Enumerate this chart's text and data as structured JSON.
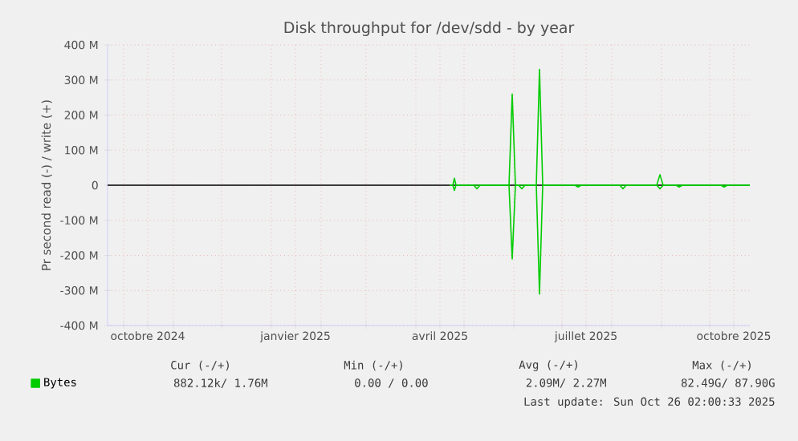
{
  "chart_data": {
    "type": "line",
    "title": "Disk throughput for /dev/sdd - by year",
    "ylabel": "Pr second read (-) / write (+)",
    "xlim": [
      "2024-09-21",
      "2025-10-26"
    ],
    "xticks": [
      {
        "value": "2024-10-01",
        "label": null
      },
      {
        "value": "2024-10-16",
        "label": "octobre 2024"
      },
      {
        "value": "2024-11-01",
        "label": null
      },
      {
        "value": "2024-12-01",
        "label": null
      },
      {
        "value": "2025-01-01",
        "label": null
      },
      {
        "value": "2025-01-16",
        "label": "janvier 2025"
      },
      {
        "value": "2025-02-01",
        "label": null
      },
      {
        "value": "2025-03-01",
        "label": null
      },
      {
        "value": "2025-04-01",
        "label": null
      },
      {
        "value": "2025-04-16",
        "label": "avril 2025"
      },
      {
        "value": "2025-05-01",
        "label": null
      },
      {
        "value": "2025-06-01",
        "label": null
      },
      {
        "value": "2025-07-01",
        "label": null
      },
      {
        "value": "2025-07-16",
        "label": "juillet 2025"
      },
      {
        "value": "2025-08-01",
        "label": null
      },
      {
        "value": "2025-09-01",
        "label": null
      },
      {
        "value": "2025-10-01",
        "label": null
      },
      {
        "value": "2025-10-16",
        "label": "octobre 2025"
      }
    ],
    "ylim": [
      -400000000,
      400000000
    ],
    "yticks": [
      {
        "value": -400000000,
        "label": "-400 M"
      },
      {
        "value": -300000000,
        "label": "-300 M"
      },
      {
        "value": -200000000,
        "label": "-200 M"
      },
      {
        "value": -100000000,
        "label": "-100 M"
      },
      {
        "value": 0,
        "label": "0"
      },
      {
        "value": 100000000,
        "label": "100 M"
      },
      {
        "value": 200000000,
        "label": "200 M"
      },
      {
        "value": 300000000,
        "label": "300 M"
      },
      {
        "value": 400000000,
        "label": "400 M"
      }
    ],
    "grid": true,
    "legend": "bottom",
    "marker": "none",
    "line_style": "solid",
    "ref_lines": [
      {
        "axis": "y",
        "value": 0,
        "color": "#000000"
      }
    ],
    "series": [
      {
        "name": "Bytes",
        "color": "#00cc00",
        "x": [
          "2025-04-22",
          "2025-04-24",
          "2025-04-25",
          "2025-04-26",
          "2025-05-29",
          "2025-05-31",
          "2025-06-02",
          "2025-06-15",
          "2025-06-17",
          "2025-06-19",
          "2025-08-29",
          "2025-08-31",
          "2025-09-02",
          "2025-10-26"
        ],
        "values": [
          0,
          0,
          20000000,
          0,
          0,
          260000000,
          0,
          0,
          330000000,
          0,
          0,
          30000000,
          0,
          0
        ]
      },
      {
        "color": "#00cc00",
        "x": [
          "2025-04-22",
          "2025-04-24",
          "2025-04-25",
          "2025-04-26",
          "2025-05-07",
          "2025-05-09",
          "2025-05-11",
          "2025-05-29",
          "2025-05-31",
          "2025-06-02",
          "2025-06-04",
          "2025-06-06",
          "2025-06-08",
          "2025-06-15",
          "2025-06-17",
          "2025-06-19",
          "2025-07-09",
          "2025-07-11",
          "2025-07-13",
          "2025-08-06",
          "2025-08-08",
          "2025-08-10",
          "2025-08-29",
          "2025-08-31",
          "2025-09-02",
          "2025-09-10",
          "2025-09-12",
          "2025-09-14",
          "2025-10-08",
          "2025-10-10",
          "2025-10-12",
          "2025-10-26"
        ],
        "values": [
          0,
          0,
          -15000000,
          0,
          0,
          -10000000,
          0,
          0,
          -210000000,
          0,
          0,
          -10000000,
          0,
          0,
          -310000000,
          0,
          0,
          -5000000,
          0,
          0,
          -10000000,
          0,
          0,
          -10000000,
          0,
          0,
          -5000000,
          0,
          0,
          -5000000,
          0,
          0
        ]
      }
    ],
    "annotations": [
      "Cur (-/+)",
      "Min (-/+)",
      "Avg (-/+)",
      "Max (-/+)",
      "882.12k/  1.76M",
      "0.00 /  0.00",
      "2.09M/  2.27M",
      "82.49G/ 87.90G",
      "Last update: Sun Oct 26 02:00:33 2025"
    ]
  }
}
